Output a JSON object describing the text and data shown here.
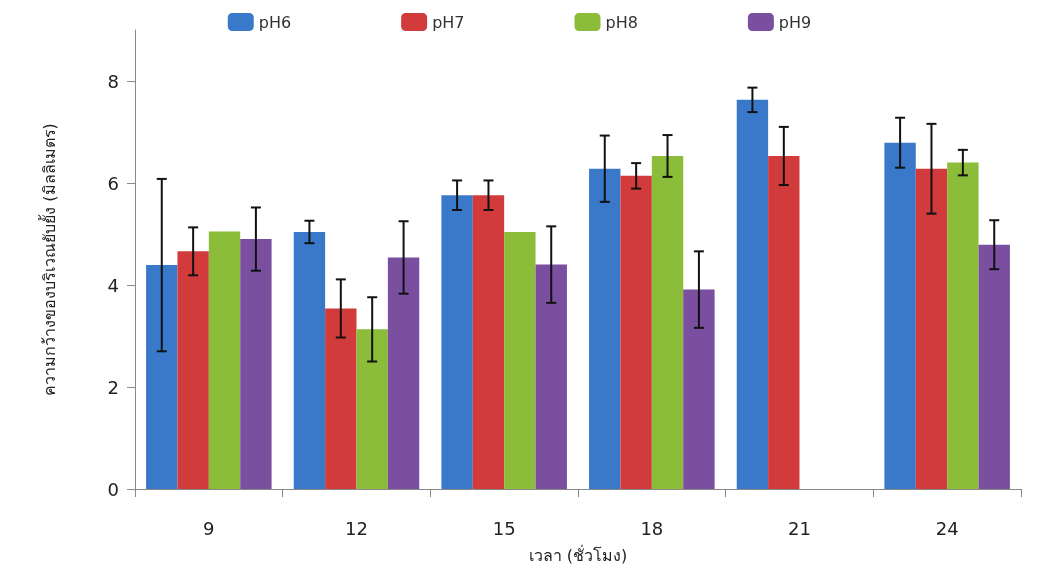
{
  "chart_data": {
    "type": "bar",
    "xlabel": "เวลา (ชั่วโมง)",
    "ylabel": "ความกว้างของบริเวณยับยั้ง (มิลลิเมตร)",
    "categories": [
      "9",
      "12",
      "15",
      "18",
      "21",
      "24"
    ],
    "series": [
      {
        "name": "pH6",
        "color": "#3a78c9",
        "values": [
          4.39,
          5.04,
          5.76,
          6.28,
          7.63,
          6.79
        ],
        "errors": [
          1.69,
          0.22,
          0.29,
          0.65,
          0.24,
          0.49
        ]
      },
      {
        "name": "pH7",
        "color": "#d23b3b",
        "values": [
          4.66,
          3.54,
          5.76,
          6.14,
          6.53,
          6.28
        ],
        "errors": [
          0.47,
          0.57,
          0.29,
          0.25,
          0.57,
          0.88
        ]
      },
      {
        "name": "pH8",
        "color": "#8cbd3a",
        "values": [
          5.05,
          3.13,
          5.04,
          6.53,
          null,
          6.4
        ],
        "errors": [
          null,
          0.63,
          null,
          0.41,
          null,
          0.25
        ]
      },
      {
        "name": "pH9",
        "color": "#7a4fa0",
        "values": [
          4.9,
          4.54,
          4.4,
          3.91,
          null,
          4.79
        ],
        "errors": [
          0.62,
          0.71,
          0.75,
          0.75,
          null,
          0.48
        ]
      }
    ],
    "ylim": [
      0,
      9
    ],
    "yticks": [
      0,
      2,
      4,
      6,
      8
    ],
    "grid": false,
    "legend": "top"
  }
}
